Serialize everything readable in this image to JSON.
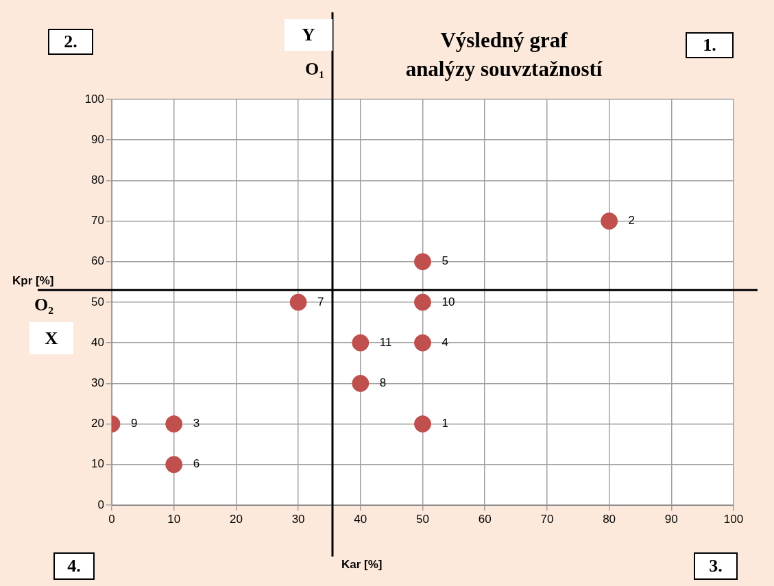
{
  "chart_data": {
    "type": "scatter",
    "title": "Výsledný graf\nanalýzy souvztažností",
    "xlabel": "Kar [%]",
    "ylabel": "Kpr [%]",
    "x": [
      50,
      80,
      10,
      50,
      50,
      10,
      30,
      40,
      0,
      50,
      40
    ],
    "values": [
      20,
      70,
      20,
      40,
      60,
      10,
      50,
      30,
      20,
      50,
      40
    ],
    "color": "#c0504d",
    "marker": "circle",
    "grid": true,
    "legend": false,
    "xlim": [
      0,
      100
    ],
    "xticks": [
      0,
      10,
      20,
      30,
      40,
      50,
      60,
      70,
      80,
      90,
      100
    ],
    "ylim": [
      0,
      100
    ],
    "yticks": [
      0,
      10,
      20,
      30,
      40,
      50,
      60,
      70,
      80,
      90,
      100
    ],
    "ref_lines": [
      {
        "axis": "x",
        "value": 35.5,
        "label": "O₁",
        "color": "#000000"
      },
      {
        "axis": "y",
        "value": 53,
        "label": "O₂",
        "color": "#000000"
      }
    ],
    "annotations": [
      "Y",
      "X",
      "1.",
      "2.",
      "3.",
      "4.",
      {
        "text": "1",
        "x": 50,
        "y": 20
      },
      {
        "text": "2",
        "x": 80,
        "y": 70
      },
      {
        "text": "3",
        "x": 10,
        "y": 20
      },
      {
        "text": "4",
        "x": 50,
        "y": 40
      },
      {
        "text": "5",
        "x": 50,
        "y": 60
      },
      {
        "text": "6",
        "x": 10,
        "y": 10
      },
      {
        "text": "7",
        "x": 30,
        "y": 50
      },
      {
        "text": "8",
        "x": 40,
        "y": 30
      },
      {
        "text": "9",
        "x": 0,
        "y": 20
      },
      {
        "text": "10",
        "x": 50,
        "y": 50
      },
      {
        "text": "11",
        "x": 40,
        "y": 40
      }
    ]
  }
}
